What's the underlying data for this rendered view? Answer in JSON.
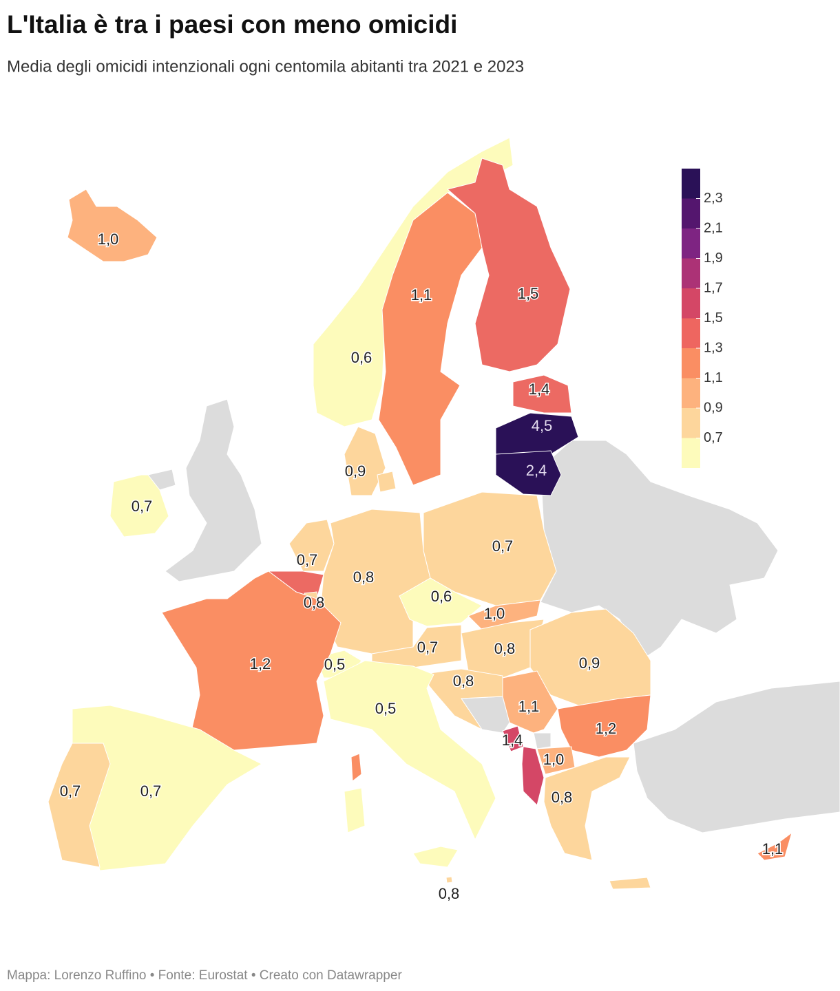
{
  "chart_data": {
    "type": "choropleth",
    "title": "L'Italia è tra i paesi con meno omicidi",
    "subtitle": "Media degli omicidi intenzionali ogni centomila abitanti tra 2021 e 2023",
    "source": "Mappa: Lorenzo Ruffino • Fonte: Eurostat • Creato con Datawrapper",
    "values": [
      1.0,
      0.6,
      1.1,
      1.5,
      1.4,
      4.5,
      2.4,
      0.7,
      0.9,
      0.7,
      null,
      0.8,
      0.8,
      0.7,
      0.6,
      1.0,
      0.7,
      0.8,
      0.9,
      0.8,
      0.5,
      1.2,
      0.5,
      0.8,
      0.7,
      0.7,
      1.1,
      1.2,
      1.4,
      null,
      1.0,
      0.8,
      1.1
    ],
    "value_labels": [
      "1,0",
      "0,6",
      "1,1",
      "1,5",
      "1,4",
      "4,5",
      "2,4",
      "0,7",
      "0,9",
      "0,7",
      null,
      "0,8",
      "0,8",
      "0,7",
      "0,6",
      "1,0",
      "0,7",
      "0,8",
      "0,9",
      "0,8",
      "0,5",
      "1,2",
      "0,5",
      "0,8",
      "0,7",
      "0,7",
      "1,1",
      "1,2",
      "1,4",
      null,
      "1,0",
      "0,8",
      "1,1"
    ],
    "colors": [
      "#fdb27e",
      "#fdfbbb",
      "#fa8e63",
      "#ec6a63",
      "#ec6a63",
      "#2a1157",
      "#2a1157",
      "#fdfbbb",
      "#fdd69c",
      "#fdd69c",
      "#ec6a63",
      "#fdd69c",
      "#fdd69c",
      "#fdd69c",
      "#fdfbbb",
      "#fdb27e",
      "#fdd69c",
      "#fdd69c",
      "#fdd69c",
      "#fdd69c",
      "#fdfbbb",
      "#fa8e63",
      "#fdfbbb",
      "#fdd69c",
      "#fdfbbb",
      "#fdd69c",
      "#fdb27e",
      "#fa8e63",
      "#d44766",
      "#d44766",
      "#fdb27e",
      "#fdd69c",
      "#fa8e63"
    ],
    "legend_lim": [
      0.5,
      2.5
    ],
    "legend_colors": [
      "#fdfbbb",
      "#fdd69c",
      "#fdb27e",
      "#fa8e63",
      "#ee6660",
      "#d44766",
      "#ac3276",
      "#7e2482",
      "#54166e",
      "#2a1157"
    ],
    "legend_ticks": [
      {
        "value": 0.7,
        "label": "0,7"
      },
      {
        "value": 0.9,
        "label": "0,9"
      },
      {
        "value": 1.1,
        "label": "1,1"
      },
      {
        "value": 1.3,
        "label": "1,3"
      },
      {
        "value": 1.5,
        "label": "1,5"
      },
      {
        "value": 1.7,
        "label": "1,7"
      },
      {
        "value": 1.9,
        "label": "1,9"
      },
      {
        "value": 2.1,
        "label": "2,1"
      },
      {
        "value": 2.3,
        "label": "2,3"
      }
    ]
  }
}
